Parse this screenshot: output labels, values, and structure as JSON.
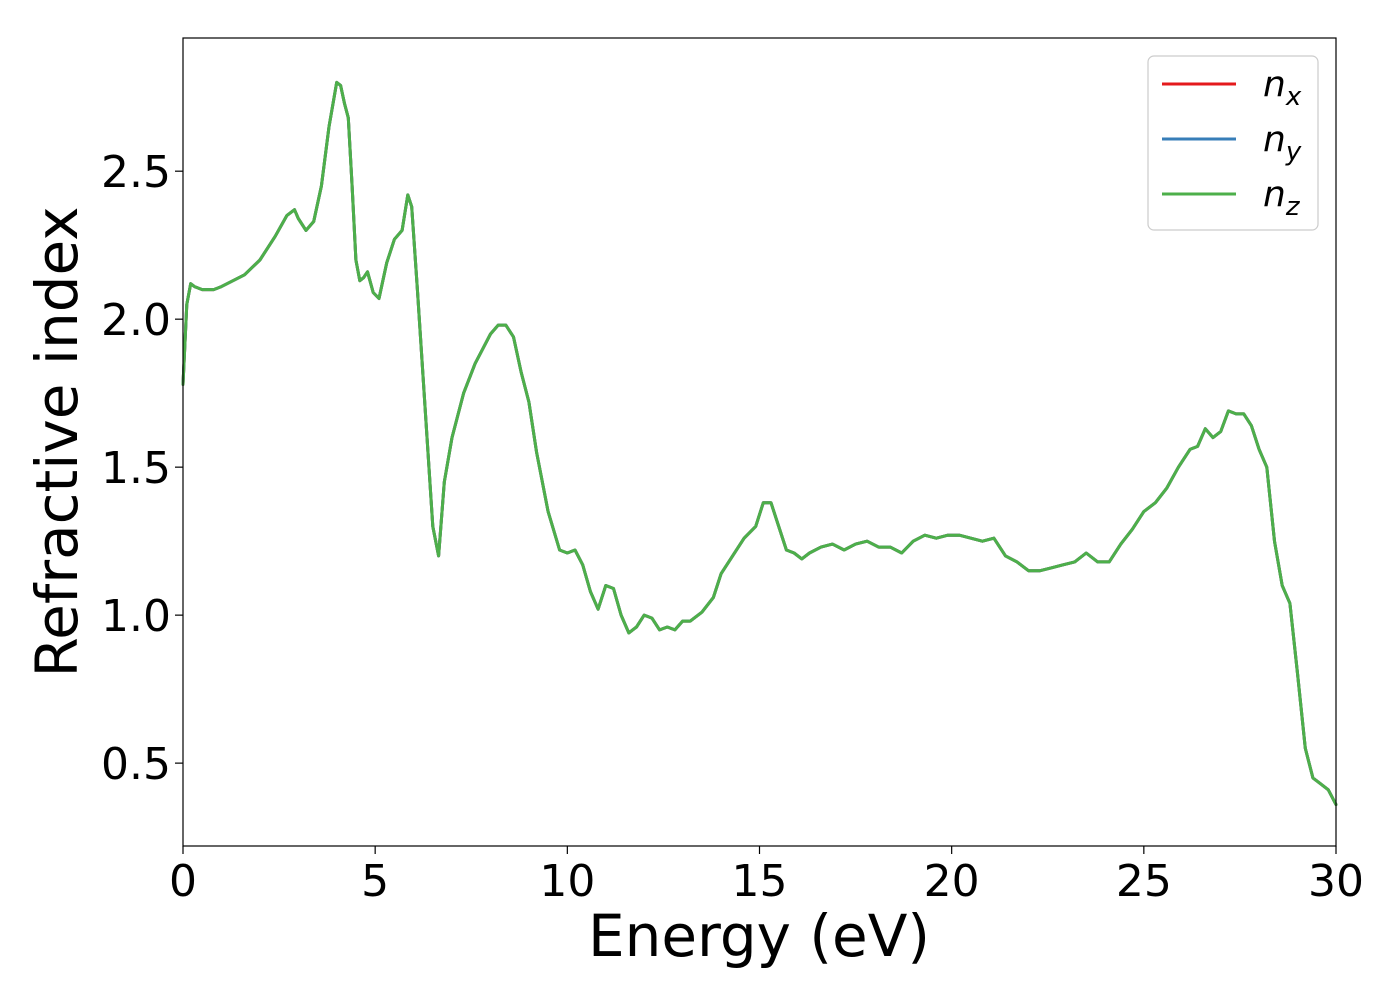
{
  "chart_data": {
    "type": "line",
    "title": "",
    "xlabel": "Energy (eV)",
    "ylabel": "Refractive index",
    "xlim": [
      0,
      30
    ],
    "ylim": [
      0.22,
      2.95
    ],
    "xticks": [
      0,
      5,
      10,
      15,
      20,
      25,
      30
    ],
    "xtick_labels": [
      "0",
      "5",
      "10",
      "15",
      "20",
      "25",
      "30"
    ],
    "yticks": [
      0.5,
      1.0,
      1.5,
      2.0,
      2.5
    ],
    "ytick_labels": [
      "0.5",
      "1.0",
      "1.5",
      "2.0",
      "2.5"
    ],
    "grid": false,
    "legend_position": "top-right",
    "x": [
      0,
      0.1,
      0.2,
      0.3,
      0.5,
      0.8,
      1.0,
      1.3,
      1.6,
      2.0,
      2.4,
      2.7,
      2.9,
      3.0,
      3.2,
      3.4,
      3.6,
      3.8,
      4.0,
      4.1,
      4.2,
      4.3,
      4.4,
      4.5,
      4.6,
      4.7,
      4.8,
      4.95,
      5.1,
      5.3,
      5.5,
      5.7,
      5.85,
      5.95,
      6.1,
      6.3,
      6.5,
      6.65,
      6.8,
      7.0,
      7.3,
      7.6,
      7.8,
      8.0,
      8.2,
      8.4,
      8.6,
      8.8,
      9.0,
      9.2,
      9.5,
      9.8,
      10.0,
      10.2,
      10.4,
      10.6,
      10.8,
      11.0,
      11.2,
      11.4,
      11.6,
      11.8,
      12.0,
      12.2,
      12.4,
      12.6,
      12.8,
      13.0,
      13.2,
      13.5,
      13.8,
      14.0,
      14.3,
      14.6,
      14.9,
      15.1,
      15.3,
      15.5,
      15.7,
      15.9,
      16.1,
      16.3,
      16.6,
      16.9,
      17.2,
      17.5,
      17.8,
      18.1,
      18.4,
      18.7,
      19.0,
      19.3,
      19.6,
      19.9,
      20.2,
      20.5,
      20.8,
      21.1,
      21.4,
      21.7,
      22.0,
      22.3,
      22.6,
      22.9,
      23.2,
      23.5,
      23.8,
      24.1,
      24.4,
      24.7,
      25.0,
      25.3,
      25.6,
      25.9,
      26.2,
      26.4,
      26.6,
      26.8,
      27.0,
      27.2,
      27.4,
      27.6,
      27.8,
      28.0,
      28.2,
      28.4,
      28.6,
      28.8,
      29.0,
      29.2,
      29.4,
      29.6,
      29.8,
      30.0
    ],
    "series": [
      {
        "name": "n_x",
        "color": "#e41a1c",
        "values": [
          1.78,
          2.05,
          2.12,
          2.11,
          2.1,
          2.1,
          2.11,
          2.13,
          2.15,
          2.2,
          2.28,
          2.35,
          2.37,
          2.34,
          2.3,
          2.33,
          2.45,
          2.65,
          2.8,
          2.79,
          2.73,
          2.68,
          2.45,
          2.2,
          2.13,
          2.14,
          2.16,
          2.09,
          2.07,
          2.19,
          2.27,
          2.3,
          2.42,
          2.38,
          2.1,
          1.7,
          1.3,
          1.2,
          1.45,
          1.6,
          1.75,
          1.85,
          1.9,
          1.95,
          1.98,
          1.98,
          1.94,
          1.82,
          1.72,
          1.55,
          1.35,
          1.22,
          1.21,
          1.22,
          1.17,
          1.08,
          1.02,
          1.1,
          1.09,
          1.0,
          0.94,
          0.96,
          1.0,
          0.99,
          0.95,
          0.96,
          0.95,
          0.98,
          0.98,
          1.01,
          1.06,
          1.14,
          1.2,
          1.26,
          1.3,
          1.38,
          1.38,
          1.3,
          1.22,
          1.21,
          1.19,
          1.21,
          1.23,
          1.24,
          1.22,
          1.24,
          1.25,
          1.23,
          1.23,
          1.21,
          1.25,
          1.27,
          1.26,
          1.27,
          1.27,
          1.26,
          1.25,
          1.26,
          1.2,
          1.18,
          1.15,
          1.15,
          1.16,
          1.17,
          1.18,
          1.21,
          1.18,
          1.18,
          1.24,
          1.29,
          1.35,
          1.38,
          1.43,
          1.5,
          1.56,
          1.57,
          1.63,
          1.6,
          1.62,
          1.69,
          1.68,
          1.68,
          1.64,
          1.56,
          1.5,
          1.25,
          1.1,
          1.04,
          0.8,
          0.55,
          0.45,
          0.43,
          0.41,
          0.36
        ]
      },
      {
        "name": "n_y",
        "color": "#377eb8",
        "values": [
          1.78,
          2.05,
          2.12,
          2.11,
          2.1,
          2.1,
          2.11,
          2.13,
          2.15,
          2.2,
          2.28,
          2.35,
          2.37,
          2.34,
          2.3,
          2.33,
          2.45,
          2.65,
          2.8,
          2.79,
          2.73,
          2.68,
          2.45,
          2.2,
          2.13,
          2.14,
          2.16,
          2.09,
          2.07,
          2.19,
          2.27,
          2.3,
          2.42,
          2.38,
          2.1,
          1.7,
          1.3,
          1.2,
          1.45,
          1.6,
          1.75,
          1.85,
          1.9,
          1.95,
          1.98,
          1.98,
          1.94,
          1.82,
          1.72,
          1.55,
          1.35,
          1.22,
          1.21,
          1.22,
          1.17,
          1.08,
          1.02,
          1.1,
          1.09,
          1.0,
          0.94,
          0.96,
          1.0,
          0.99,
          0.95,
          0.96,
          0.95,
          0.98,
          0.98,
          1.01,
          1.06,
          1.14,
          1.2,
          1.26,
          1.3,
          1.38,
          1.38,
          1.3,
          1.22,
          1.21,
          1.19,
          1.21,
          1.23,
          1.24,
          1.22,
          1.24,
          1.25,
          1.23,
          1.23,
          1.21,
          1.25,
          1.27,
          1.26,
          1.27,
          1.27,
          1.26,
          1.25,
          1.26,
          1.2,
          1.18,
          1.15,
          1.15,
          1.16,
          1.17,
          1.18,
          1.21,
          1.18,
          1.18,
          1.24,
          1.29,
          1.35,
          1.38,
          1.43,
          1.5,
          1.56,
          1.57,
          1.63,
          1.6,
          1.62,
          1.69,
          1.68,
          1.68,
          1.64,
          1.56,
          1.5,
          1.25,
          1.1,
          1.04,
          0.8,
          0.55,
          0.45,
          0.43,
          0.41,
          0.36
        ]
      },
      {
        "name": "n_z",
        "color": "#4daf4a",
        "values": [
          1.78,
          2.05,
          2.12,
          2.11,
          2.1,
          2.1,
          2.11,
          2.13,
          2.15,
          2.2,
          2.28,
          2.35,
          2.37,
          2.34,
          2.3,
          2.33,
          2.45,
          2.65,
          2.8,
          2.79,
          2.73,
          2.68,
          2.45,
          2.2,
          2.13,
          2.14,
          2.16,
          2.09,
          2.07,
          2.19,
          2.27,
          2.3,
          2.42,
          2.38,
          2.1,
          1.7,
          1.3,
          1.2,
          1.45,
          1.6,
          1.75,
          1.85,
          1.9,
          1.95,
          1.98,
          1.98,
          1.94,
          1.82,
          1.72,
          1.55,
          1.35,
          1.22,
          1.21,
          1.22,
          1.17,
          1.08,
          1.02,
          1.1,
          1.09,
          1.0,
          0.94,
          0.96,
          1.0,
          0.99,
          0.95,
          0.96,
          0.95,
          0.98,
          0.98,
          1.01,
          1.06,
          1.14,
          1.2,
          1.26,
          1.3,
          1.38,
          1.38,
          1.3,
          1.22,
          1.21,
          1.19,
          1.21,
          1.23,
          1.24,
          1.22,
          1.24,
          1.25,
          1.23,
          1.23,
          1.21,
          1.25,
          1.27,
          1.26,
          1.27,
          1.27,
          1.26,
          1.25,
          1.26,
          1.2,
          1.18,
          1.15,
          1.15,
          1.16,
          1.17,
          1.18,
          1.21,
          1.18,
          1.18,
          1.24,
          1.29,
          1.35,
          1.38,
          1.43,
          1.5,
          1.56,
          1.57,
          1.63,
          1.6,
          1.62,
          1.69,
          1.68,
          1.68,
          1.64,
          1.56,
          1.5,
          1.25,
          1.1,
          1.04,
          0.8,
          0.55,
          0.45,
          0.43,
          0.41,
          0.36
        ]
      }
    ],
    "legend": [
      {
        "base": "n",
        "sub": "x",
        "color": "#e41a1c"
      },
      {
        "base": "n",
        "sub": "y",
        "color": "#377eb8"
      },
      {
        "base": "n",
        "sub": "z",
        "color": "#4daf4a"
      }
    ]
  }
}
